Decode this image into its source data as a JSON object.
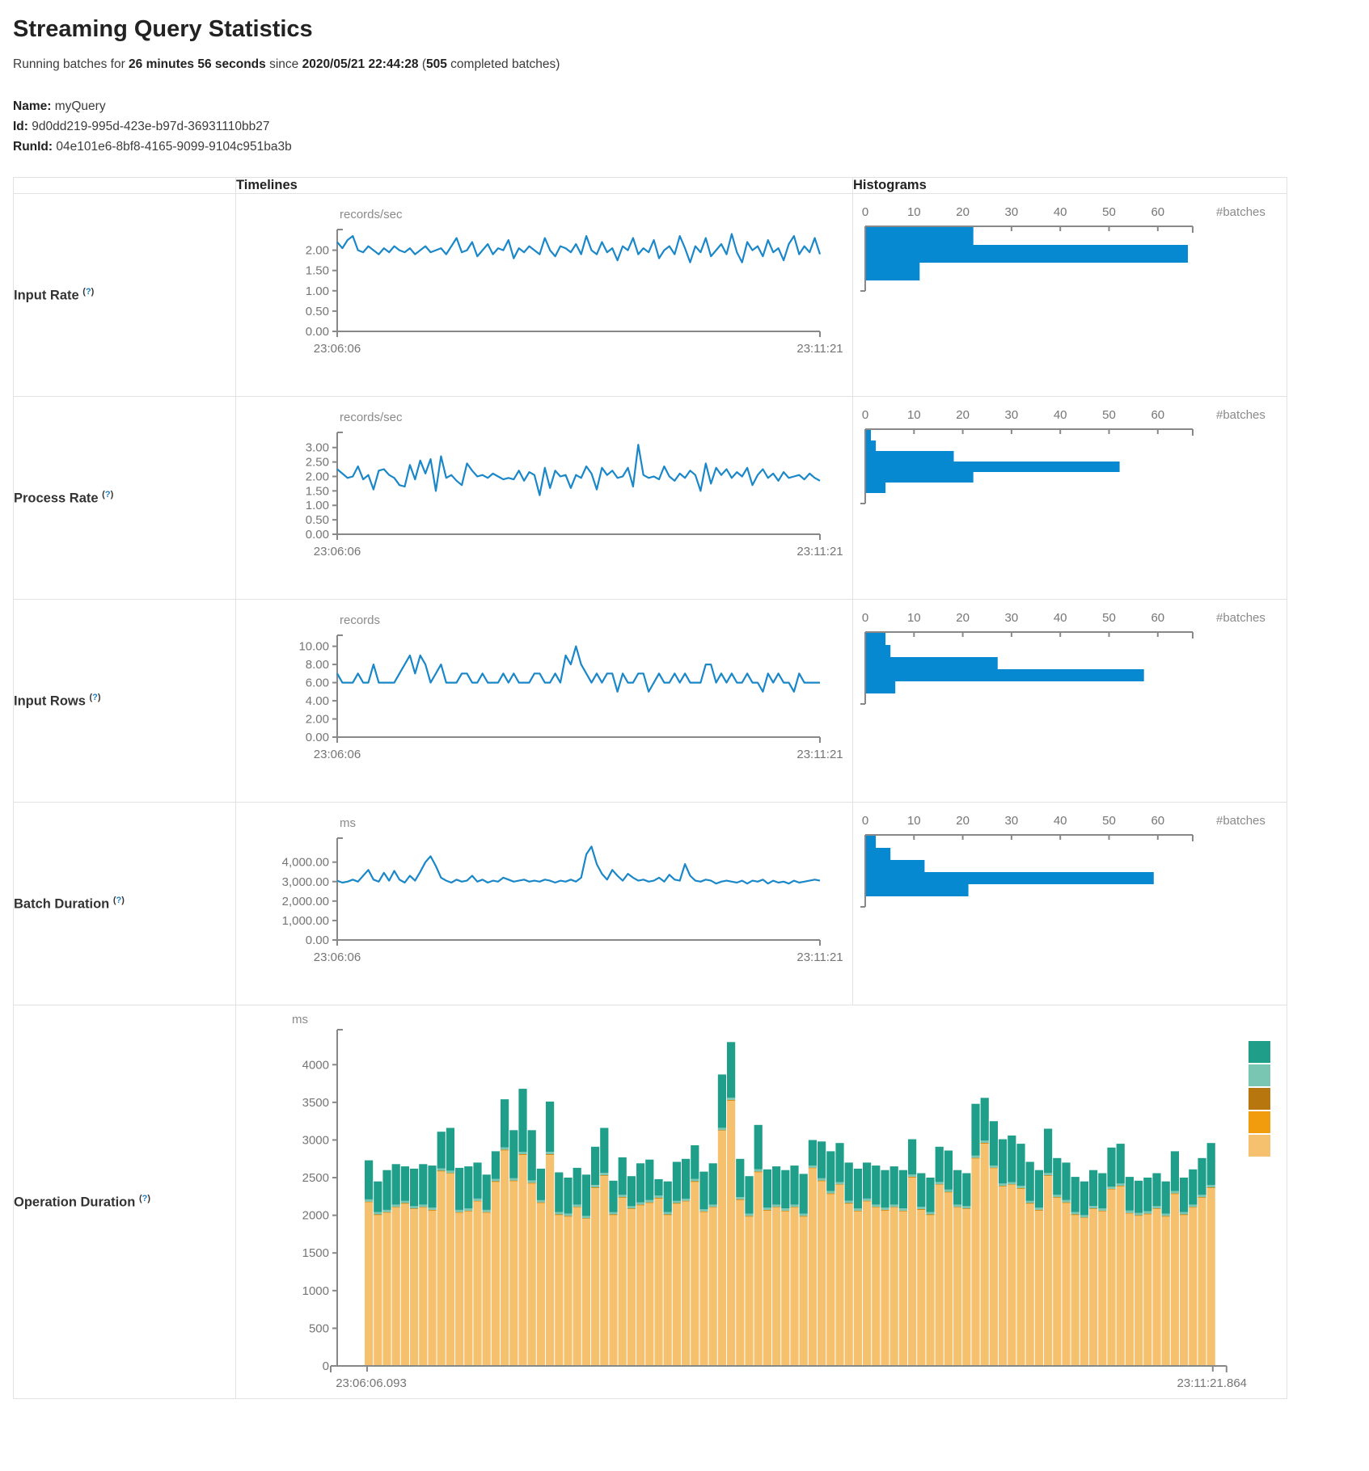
{
  "page": {
    "title": "Streaming Query Statistics",
    "subtitle": {
      "prefix": "Running batches for ",
      "duration": "26 minutes 56 seconds",
      "mid": " since ",
      "start_time": "2020/05/21 22:44:28",
      "paren_open": " (",
      "completed_batches": "505",
      "suffix": " completed batches)"
    },
    "name_label": "Name:",
    "name_value": " myQuery",
    "id_label": "Id:",
    "id_value": " 9d0dd219-995d-423e-b97d-36931110bb27",
    "runid_label": "RunId:",
    "runid_value": " 04e101e6-8bf8-4165-9099-9104c951ba3b"
  },
  "table": {
    "col_timelines": "Timelines",
    "col_histograms": "Histograms",
    "help_open": "(",
    "help_q": "?",
    "help_close": ")",
    "rows": [
      {
        "label": "Input Rate"
      },
      {
        "label": "Process Rate"
      },
      {
        "label": "Input Rows"
      },
      {
        "label": "Batch Duration"
      },
      {
        "label": "Operation Duration"
      }
    ]
  },
  "colors": {
    "line_blue": "#1a87c8",
    "bar_blue": "#0789d2",
    "axis": "#888888",
    "tick_text": "#757575",
    "unit_text": "#8a8a8a",
    "teal": "#1f9e8a",
    "light_teal": "#79c7b2",
    "dark_gold": "#b8770e",
    "orange": "#f09c0d",
    "tan": "#f5c16e"
  },
  "chart_data": [
    {
      "id": "input-rate",
      "type": "line",
      "unit": "records/sec",
      "x_start": "23:06:06",
      "x_end": "23:11:21",
      "y_max": 2.35,
      "y_ticks": [
        {
          "label": "2.00",
          "v": 2
        },
        {
          "label": "1.50",
          "v": 1.5
        },
        {
          "label": "1.00",
          "v": 1
        },
        {
          "label": "0.50",
          "v": 0.5
        },
        {
          "label": "0.00",
          "v": 0
        }
      ],
      "values": [
        2.2,
        2.05,
        2.25,
        2.35,
        2.0,
        1.95,
        2.1,
        2.0,
        1.9,
        2.05,
        1.95,
        2.1,
        2.0,
        1.95,
        2.05,
        1.9,
        2.0,
        2.1,
        1.95,
        2.0,
        2.05,
        1.9,
        2.1,
        2.3,
        1.95,
        2.0,
        2.2,
        1.85,
        2.0,
        2.15,
        1.9,
        2.05,
        2.0,
        2.25,
        1.8,
        2.05,
        1.95,
        2.1,
        2.0,
        1.9,
        2.3,
        2.0,
        1.85,
        2.1,
        2.05,
        1.95,
        2.15,
        1.9,
        2.35,
        2.0,
        1.9,
        2.2,
        1.95,
        2.05,
        1.75,
        2.1,
        2.0,
        2.3,
        1.9,
        2.05,
        1.95,
        2.25,
        1.8,
        2.0,
        2.1,
        1.9,
        2.35,
        2.05,
        1.7,
        2.1,
        1.95,
        2.3,
        1.85,
        2.0,
        2.15,
        1.9,
        2.4,
        1.95,
        1.7,
        2.2,
        2.0,
        2.1,
        1.85,
        2.25,
        1.95,
        2.05,
        1.75,
        2.15,
        2.35,
        1.9,
        2.1,
        1.95,
        2.3,
        1.9
      ],
      "histogram": {
        "axis_label": "#batches",
        "x_ticks": [
          0,
          10,
          20,
          30,
          40,
          50,
          60
        ],
        "bin_thickness": 22,
        "bins": [
          22,
          66,
          11
        ]
      }
    },
    {
      "id": "process-rate",
      "type": "line",
      "unit": "records/sec",
      "x_start": "23:06:06",
      "x_end": "23:11:21",
      "y_max": 3.3,
      "y_ticks": [
        {
          "label": "3.00",
          "v": 3
        },
        {
          "label": "2.50",
          "v": 2.5
        },
        {
          "label": "2.00",
          "v": 2
        },
        {
          "label": "1.50",
          "v": 1.5
        },
        {
          "label": "1.00",
          "v": 1
        },
        {
          "label": "0.50",
          "v": 0.5
        },
        {
          "label": "0.00",
          "v": 0
        }
      ],
      "values": [
        2.25,
        2.1,
        1.95,
        2.0,
        2.35,
        1.9,
        2.05,
        1.55,
        2.2,
        2.25,
        2.05,
        1.95,
        1.7,
        1.65,
        2.4,
        1.9,
        2.55,
        2.1,
        2.6,
        1.5,
        2.7,
        1.95,
        2.05,
        1.85,
        1.7,
        2.45,
        2.2,
        2.0,
        2.05,
        1.95,
        2.1,
        2.0,
        1.9,
        1.95,
        1.9,
        2.2,
        1.85,
        2.15,
        2.05,
        1.35,
        2.3,
        1.6,
        2.2,
        2.0,
        2.05,
        1.6,
        2.05,
        1.95,
        2.35,
        2.1,
        1.55,
        2.3,
        2.05,
        2.2,
        1.95,
        2.0,
        2.3,
        1.65,
        3.1,
        2.05,
        1.95,
        2.0,
        1.9,
        2.35,
        2.0,
        1.85,
        2.1,
        1.95,
        2.2,
        2.05,
        1.5,
        2.45,
        1.75,
        2.3,
        2.05,
        2.25,
        1.95,
        2.15,
        2.0,
        2.3,
        1.7,
        2.05,
        2.25,
        1.95,
        2.1,
        1.85,
        2.15,
        1.95,
        2.0,
        2.05,
        1.9,
        2.1,
        1.95,
        1.85
      ],
      "histogram": {
        "axis_label": "#batches",
        "x_ticks": [
          0,
          10,
          20,
          30,
          40,
          50,
          60
        ],
        "bin_thickness": 13,
        "bins": [
          1,
          2,
          18,
          52,
          22,
          4
        ]
      }
    },
    {
      "id": "input-rows",
      "type": "line",
      "unit": "records",
      "x_start": "23:06:06",
      "x_end": "23:11:21",
      "y_max": 10.5,
      "y_ticks": [
        {
          "label": "10.00",
          "v": 10
        },
        {
          "label": "8.00",
          "v": 8
        },
        {
          "label": "6.00",
          "v": 6
        },
        {
          "label": "4.00",
          "v": 4
        },
        {
          "label": "2.00",
          "v": 2
        },
        {
          "label": "0.00",
          "v": 0
        }
      ],
      "values": [
        7,
        6,
        6,
        6,
        7,
        6,
        6,
        8,
        6,
        6,
        6,
        6,
        7,
        8,
        9,
        7,
        9,
        8,
        6,
        7,
        8,
        6,
        6,
        6,
        7,
        7,
        6,
        6,
        7,
        6,
        6,
        6,
        7,
        6,
        7,
        6,
        6,
        6,
        7,
        7,
        6,
        6,
        7,
        6,
        9,
        8,
        10,
        8,
        7,
        6,
        7,
        6,
        7,
        7,
        5,
        7,
        6,
        6,
        7,
        7,
        5,
        6,
        7,
        6,
        6,
        7,
        6,
        7,
        6,
        6,
        6,
        8,
        8,
        6,
        7,
        6,
        7,
        6,
        6,
        7,
        6,
        6,
        5,
        7,
        6,
        7,
        6,
        6,
        5,
        7,
        6,
        6,
        6,
        6
      ],
      "histogram": {
        "axis_label": "#batches",
        "x_ticks": [
          0,
          10,
          20,
          30,
          40,
          50,
          60
        ],
        "bin_thickness": 15,
        "bins": [
          4,
          5,
          27,
          57,
          6
        ]
      }
    },
    {
      "id": "batch-duration",
      "type": "line",
      "unit": "ms",
      "x_start": "23:06:06",
      "x_end": "23:11:21",
      "y_max": 4900,
      "y_ticks": [
        {
          "label": "4,000.00",
          "v": 4000
        },
        {
          "label": "3,000.00",
          "v": 3000
        },
        {
          "label": "2,000.00",
          "v": 2000
        },
        {
          "label": "1,000.00",
          "v": 1000
        },
        {
          "label": "0.00",
          "v": 0
        }
      ],
      "values": [
        3050,
        2950,
        3000,
        3100,
        3000,
        3300,
        3600,
        3100,
        3000,
        3450,
        3050,
        3550,
        3100,
        2950,
        3300,
        3050,
        3500,
        4000,
        4300,
        3800,
        3200,
        3050,
        2950,
        3100,
        3000,
        3050,
        3300,
        3000,
        3100,
        2950,
        3050,
        3000,
        3200,
        3100,
        3000,
        3050,
        3100,
        3000,
        3050,
        3000,
        3100,
        3050,
        2950,
        3050,
        3000,
        3100,
        3000,
        3200,
        4400,
        4800,
        3900,
        3400,
        3100,
        3600,
        3300,
        3050,
        3400,
        3200,
        3050,
        3100,
        3000,
        3050,
        3200,
        3000,
        3350,
        3100,
        3050,
        3900,
        3300,
        3050,
        3000,
        3100,
        3050,
        2900,
        3000,
        3050,
        3000,
        2950,
        3050,
        2900,
        3050,
        3000,
        3100,
        2900,
        3050,
        2950,
        3000,
        2900,
        3050,
        2950,
        3000,
        3050,
        3100,
        3050
      ],
      "histogram": {
        "axis_label": "#batches",
        "x_ticks": [
          0,
          10,
          20,
          30,
          40,
          50,
          60
        ],
        "bin_thickness": 15,
        "bins": [
          2,
          5,
          12,
          59,
          21
        ]
      }
    },
    {
      "id": "operation-duration",
      "type": "stacked-bar",
      "unit": "ms",
      "x_start": "23:06:06.093",
      "x_end": "23:11:21.864",
      "y_max": 4400,
      "y_ticks": [
        {
          "label": "4000",
          "v": 4000
        },
        {
          "label": "3500",
          "v": 3500
        },
        {
          "label": "3000",
          "v": 3000
        },
        {
          "label": "2500",
          "v": 2500
        },
        {
          "label": "2000",
          "v": 2000
        },
        {
          "label": "1500",
          "v": 1500
        },
        {
          "label": "1000",
          "v": 1000
        },
        {
          "label": "500",
          "v": 500
        },
        {
          "label": "0",
          "v": 0
        }
      ],
      "legend": [
        {
          "name": "teal",
          "color": "#1f9e8a"
        },
        {
          "name": "light-teal",
          "color": "#79c7b2"
        },
        {
          "name": "dark-gold",
          "color": "#b8770e"
        },
        {
          "name": "orange",
          "color": "#f09c0d"
        },
        {
          "name": "tan",
          "color": "#f5c16e"
        }
      ],
      "slivers": {
        "orange": 8,
        "dark_gold": 4,
        "light_teal": 30
      },
      "bars_base_tan": [
        2170,
        2000,
        2030,
        2100,
        2150,
        2080,
        2100,
        2060,
        2580,
        2550,
        2030,
        2050,
        2180,
        2030,
        2440,
        2860,
        2450,
        2800,
        2420,
        2160,
        2800,
        2000,
        1980,
        2100,
        1950,
        2360,
        2520,
        2000,
        2230,
        2080,
        2130,
        2160,
        2220,
        2000,
        2150,
        2180,
        2440,
        2040,
        2100,
        3120,
        3520,
        2200,
        1980,
        2570,
        2060,
        2100,
        2050,
        2100,
        1980,
        2620,
        2450,
        2280,
        2400,
        2150,
        2050,
        2180,
        2100,
        2060,
        2100,
        2050,
        2500,
        2070,
        2000,
        2400,
        2300,
        2100,
        2080,
        2750,
        2950,
        2620,
        2380,
        2400,
        2350,
        2150,
        2060,
        2520,
        2230,
        2160,
        2000,
        1960,
        2080,
        2050,
        2340,
        2380,
        2020,
        1990,
        2010,
        2080,
        1980,
        2280,
        2000,
        2100,
        2230,
        2360
      ],
      "bars_total": [
        2730,
        2450,
        2600,
        2680,
        2650,
        2620,
        2680,
        2660,
        3110,
        3160,
        2630,
        2650,
        2700,
        2540,
        2850,
        3540,
        3130,
        3680,
        3130,
        2620,
        3510,
        2570,
        2500,
        2630,
        2540,
        2910,
        3160,
        2460,
        2770,
        2520,
        2690,
        2740,
        2480,
        2450,
        2710,
        2750,
        2930,
        2580,
        2690,
        3870,
        4300,
        2750,
        2520,
        3200,
        2610,
        2650,
        2600,
        2660,
        2550,
        3000,
        2980,
        2850,
        2960,
        2700,
        2620,
        2700,
        2660,
        2600,
        2650,
        2600,
        3010,
        2560,
        2500,
        2910,
        2860,
        2600,
        2560,
        3480,
        3560,
        3250,
        3010,
        3060,
        2950,
        2710,
        2600,
        3150,
        2760,
        2700,
        2510,
        2450,
        2600,
        2560,
        2900,
        2950,
        2510,
        2460,
        2500,
        2560,
        2450,
        2850,
        2500,
        2610,
        2760,
        2960
      ]
    }
  ]
}
